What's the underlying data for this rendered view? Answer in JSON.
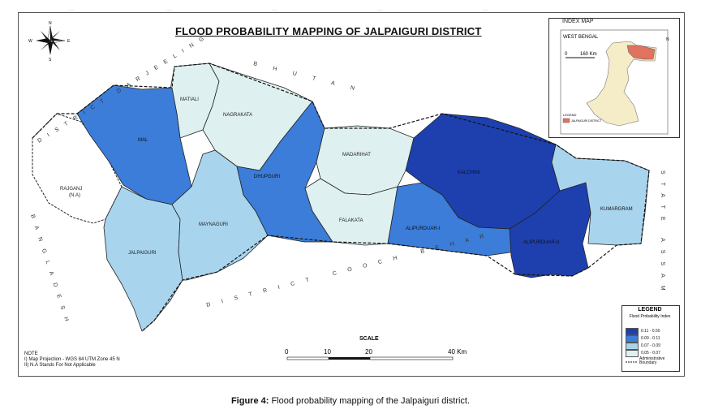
{
  "title": "FLOOD PROBABILITY MAPPING OF JALPAIGURI DISTRICT",
  "caption": {
    "label": "Figure 4:",
    "text": " Flood probability mapping of the Jalpaiguri district."
  },
  "colors": {
    "class1": "#1e40af",
    "class2": "#3b7dd8",
    "class3": "#a8d4ee",
    "class4": "#dff0f0",
    "na": "#ffffff"
  },
  "blocks": [
    {
      "name": "MATIALI",
      "cls": "class4"
    },
    {
      "name": "NAGRAKATA",
      "cls": "class4"
    },
    {
      "name": "MAL",
      "cls": "class2"
    },
    {
      "name": "RAJGANJ",
      "sub": "(N.A)",
      "cls": "na"
    },
    {
      "name": "JALPAIGURI",
      "cls": "class3"
    },
    {
      "name": "MAYNAGURI",
      "cls": "class3"
    },
    {
      "name": "DHUPGURI",
      "cls": "class2"
    },
    {
      "name": "MADARIHAT",
      "cls": "class4"
    },
    {
      "name": "FALAKATA",
      "cls": "class4"
    },
    {
      "name": "KALCHINI",
      "cls": "class1"
    },
    {
      "name": "ALIPURDUAR-I",
      "cls": "class2"
    },
    {
      "name": "ALIPURDUAR-II",
      "cls": "class1"
    },
    {
      "name": "KUMARGRAM",
      "cls": "class3"
    }
  ],
  "boundary_labels": [
    {
      "text": "DISTRICT DARJEELING"
    },
    {
      "text": "BHUTAN"
    },
    {
      "text": "BANGLADESH"
    },
    {
      "text": "DISTRICT COOCH BEHAR"
    },
    {
      "text": "STATE ASSAM"
    }
  ],
  "compass": {
    "n": "N",
    "s": "S",
    "e": "E",
    "w": "W"
  },
  "index_map": {
    "title": "INDEX MAP",
    "state": "WEST BENGAL",
    "scale_zero": "0",
    "scale_label": "160 Km",
    "north": "N",
    "legend_title": "LEGEND",
    "legend_item": "JALPAIGURI DISTRICT"
  },
  "legend": {
    "title": "LEGEND",
    "subtitle": "Flood Probability Index",
    "items": [
      {
        "label": "0.11 - 0.50",
        "cls": "class1"
      },
      {
        "label": "0.09 - 0.11",
        "cls": "class2"
      },
      {
        "label": "0.07 - 0.09",
        "cls": "class3"
      },
      {
        "label": "0.05 - 0.07",
        "cls": "class4"
      }
    ],
    "boundary_label": "Administrative Boundary"
  },
  "scale": {
    "title": "SCALE",
    "ticks": [
      "0",
      "10",
      "20",
      "40 Km"
    ]
  },
  "notes": [
    "NOTE",
    "I) Map Projection - WGS 84 UTM Zone 45 N",
    "II) N.A Stands For Not Applicable"
  ]
}
